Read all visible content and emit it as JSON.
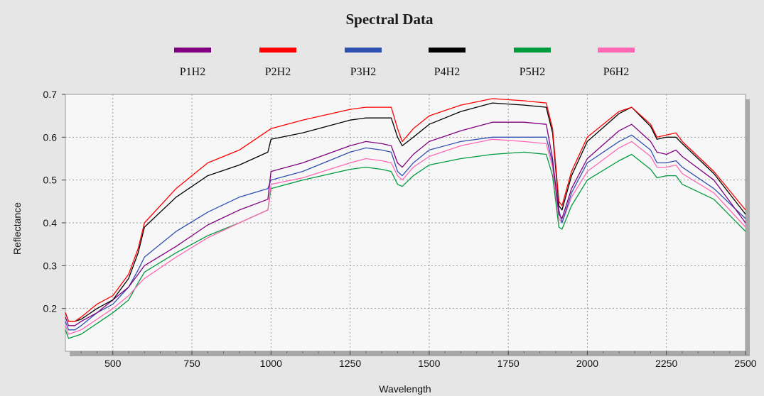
{
  "chart_data": {
    "type": "line",
    "title": "Spectral Data",
    "xlabel": "Wavelength",
    "ylabel": "Reflectance",
    "xlim": [
      350,
      2500
    ],
    "ylim": [
      0.1,
      0.7
    ],
    "x_ticks": [
      500,
      750,
      1000,
      1250,
      1500,
      1750,
      2000,
      2250,
      2500
    ],
    "y_ticks": [
      0.2,
      0.3,
      0.4,
      0.5,
      0.6,
      0.7
    ],
    "grid": true,
    "legend_position": "top",
    "x": [
      350,
      360,
      380,
      400,
      450,
      500,
      550,
      580,
      600,
      700,
      800,
      900,
      990,
      1000,
      1100,
      1250,
      1300,
      1350,
      1380,
      1400,
      1415,
      1450,
      1500,
      1600,
      1700,
      1800,
      1870,
      1890,
      1910,
      1920,
      1950,
      2000,
      2100,
      2140,
      2200,
      2220,
      2250,
      2280,
      2300,
      2400,
      2500
    ],
    "series": [
      {
        "name": "P1H2",
        "color": "#800080",
        "values": [
          0.18,
          0.16,
          0.16,
          0.17,
          0.19,
          0.22,
          0.25,
          0.28,
          0.3,
          0.345,
          0.395,
          0.43,
          0.455,
          0.52,
          0.54,
          0.58,
          0.59,
          0.585,
          0.58,
          0.54,
          0.53,
          0.56,
          0.59,
          0.615,
          0.635,
          0.635,
          0.63,
          0.55,
          0.42,
          0.41,
          0.48,
          0.55,
          0.615,
          0.63,
          0.59,
          0.565,
          0.56,
          0.57,
          0.555,
          0.5,
          0.4
        ]
      },
      {
        "name": "P2H2",
        "color": "#ff0000",
        "values": [
          0.19,
          0.17,
          0.17,
          0.18,
          0.21,
          0.23,
          0.28,
          0.34,
          0.4,
          0.48,
          0.54,
          0.57,
          0.615,
          0.62,
          0.64,
          0.665,
          0.67,
          0.67,
          0.67,
          0.62,
          0.59,
          0.62,
          0.65,
          0.675,
          0.69,
          0.685,
          0.68,
          0.62,
          0.45,
          0.44,
          0.52,
          0.6,
          0.66,
          0.67,
          0.63,
          0.6,
          0.605,
          0.61,
          0.59,
          0.52,
          0.43
        ]
      },
      {
        "name": "P3H2",
        "color": "#3050b0",
        "values": [
          0.17,
          0.15,
          0.15,
          0.16,
          0.19,
          0.21,
          0.25,
          0.29,
          0.32,
          0.38,
          0.425,
          0.46,
          0.48,
          0.5,
          0.52,
          0.565,
          0.575,
          0.57,
          0.565,
          0.52,
          0.51,
          0.54,
          0.57,
          0.59,
          0.6,
          0.6,
          0.6,
          0.54,
          0.43,
          0.4,
          0.47,
          0.54,
          0.59,
          0.605,
          0.57,
          0.54,
          0.54,
          0.545,
          0.53,
          0.48,
          0.41
        ]
      },
      {
        "name": "P4H2",
        "color": "#000000",
        "values": [
          0.19,
          0.17,
          0.17,
          0.175,
          0.2,
          0.22,
          0.27,
          0.33,
          0.39,
          0.46,
          0.51,
          0.535,
          0.565,
          0.595,
          0.61,
          0.64,
          0.645,
          0.645,
          0.645,
          0.6,
          0.58,
          0.6,
          0.63,
          0.66,
          0.68,
          0.675,
          0.67,
          0.61,
          0.44,
          0.43,
          0.51,
          0.59,
          0.655,
          0.67,
          0.625,
          0.595,
          0.6,
          0.6,
          0.585,
          0.515,
          0.42
        ]
      },
      {
        "name": "P5H2",
        "color": "#009a3e",
        "values": [
          0.15,
          0.13,
          0.135,
          0.14,
          0.165,
          0.19,
          0.22,
          0.26,
          0.285,
          0.33,
          0.37,
          0.4,
          0.43,
          0.48,
          0.5,
          0.525,
          0.53,
          0.525,
          0.52,
          0.49,
          0.485,
          0.51,
          0.535,
          0.55,
          0.56,
          0.565,
          0.56,
          0.51,
          0.39,
          0.385,
          0.44,
          0.5,
          0.545,
          0.56,
          0.525,
          0.505,
          0.51,
          0.51,
          0.49,
          0.455,
          0.38
        ]
      },
      {
        "name": "P6H2",
        "color": "#ff69b4",
        "values": [
          0.16,
          0.14,
          0.145,
          0.15,
          0.175,
          0.2,
          0.23,
          0.255,
          0.27,
          0.32,
          0.365,
          0.4,
          0.43,
          0.49,
          0.505,
          0.54,
          0.55,
          0.545,
          0.54,
          0.51,
          0.5,
          0.53,
          0.555,
          0.58,
          0.595,
          0.59,
          0.585,
          0.53,
          0.41,
          0.4,
          0.46,
          0.52,
          0.575,
          0.59,
          0.555,
          0.53,
          0.53,
          0.535,
          0.515,
          0.47,
          0.39
        ]
      }
    ]
  }
}
